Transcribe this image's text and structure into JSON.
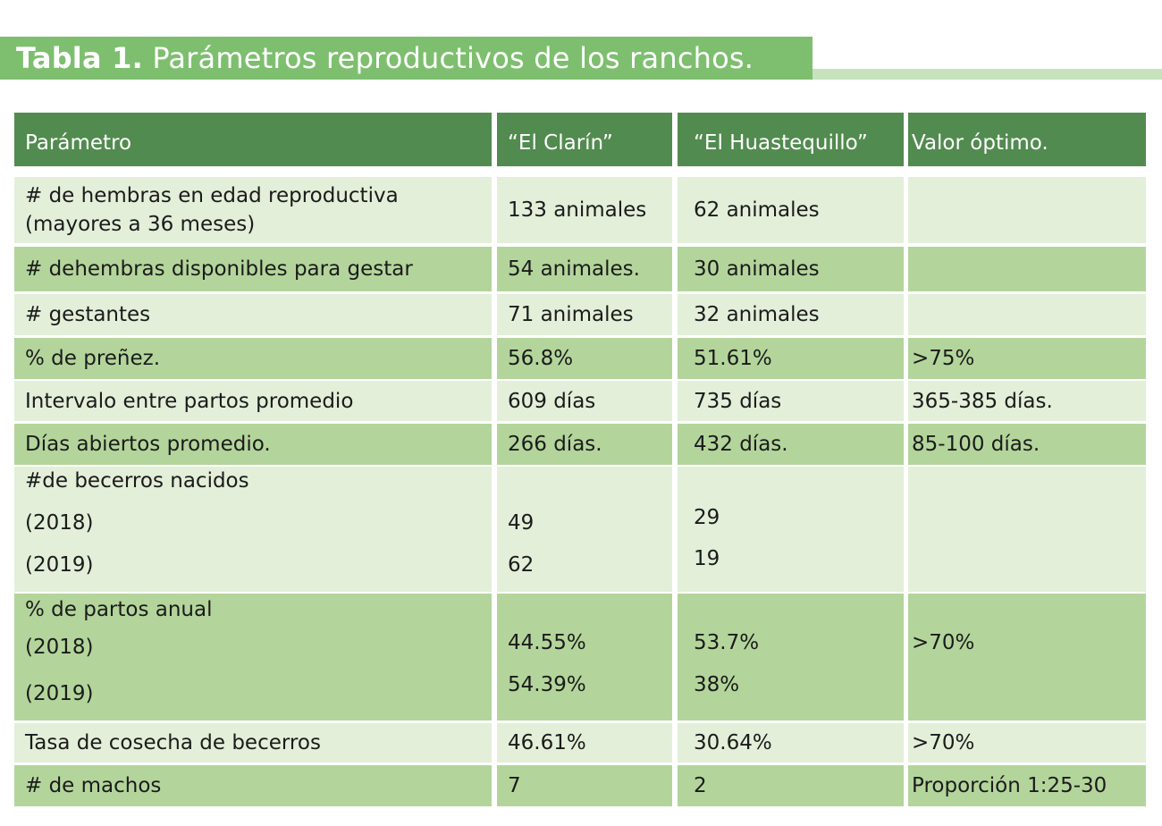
{
  "title": {
    "bold": "Tabla 1.",
    "rest": "Parámetros reproductivos de los ranchos."
  },
  "headers": [
    "Parámetro",
    "“El Clarín”",
    "“El Huastequillo”",
    "Valor óptimo."
  ],
  "rows": [
    {
      "param": [
        "# de hembras en edad reproductiva",
        "(mayores a  36 meses)"
      ],
      "clarin": "133 animales",
      "huaste": "62 animales",
      "optimo": ""
    },
    {
      "param": "# dehembras disponibles para gestar",
      "clarin": "54 animales.",
      "huaste": "30 animales",
      "optimo": ""
    },
    {
      "param": "# gestantes",
      "clarin": "71 animales",
      "huaste": "32 animales",
      "optimo": ""
    },
    {
      "param": "% de preñez.",
      "clarin": "56.8%",
      "huaste": "51.61%",
      "optimo": ">75%"
    },
    {
      "param": "Intervalo entre partos promedio",
      "clarin": "609 días",
      "huaste": "735 días",
      "optimo": "365-385 días."
    },
    {
      "param": "Días abiertos promedio.",
      "clarin": "266 días.",
      "huaste": "432 días.",
      "optimo": "85-100 días."
    },
    {
      "param": [
        "#de becerros nacidos",
        "(2018)",
        "(2019)"
      ],
      "clarin": [
        "49",
        "62"
      ],
      "huaste": [
        "29",
        "19"
      ],
      "optimo": ""
    },
    {
      "param": [
        "% de partos anual",
        "(2018)",
        "(2019)"
      ],
      "clarin": [
        "44.55%",
        "54.39%"
      ],
      "huaste": [
        "53.7%",
        "38%"
      ],
      "optimo": ">70%"
    },
    {
      "param": "Tasa de cosecha de becerros",
      "clarin": "46.61%",
      "huaste": "30.64%",
      "optimo": ">70%"
    },
    {
      "param": "# de machos",
      "clarin": "7",
      "huaste": "2",
      "optimo": "Proporción 1:25-30"
    }
  ]
}
